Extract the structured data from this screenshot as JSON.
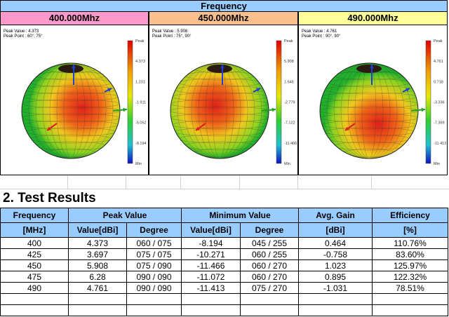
{
  "header": {
    "title": "Frequency"
  },
  "panels": [
    {
      "label": "400.000Mhz",
      "peak_value": "Peak Value :  4.373",
      "peak_point": "Peak Point :  60°, 75°",
      "scale": [
        "Peak",
        "4.373",
        "1.231",
        "-1.911",
        "-5.052",
        "-8.194",
        "Min"
      ]
    },
    {
      "label": "450.000Mhz",
      "peak_value": "Peak Value :  5.908",
      "peak_point": "Peak Point :  75°, 90°",
      "scale": [
        "Peak",
        "5.908",
        "1.545",
        "-2.779",
        "-7.122",
        "-11.466",
        "Min"
      ]
    },
    {
      "label": "490.000Mhz",
      "peak_value": "Peak Value :  4.761",
      "peak_point": "Peak Point :  90°, 90°",
      "scale": [
        "Peak",
        "4.761",
        "0.718",
        "-3.336",
        "-7.369",
        "-11.413",
        "Min"
      ]
    }
  ],
  "section": {
    "title": "2. Test Results"
  },
  "table": {
    "header_top": [
      "Frequency",
      "Peak Value",
      "Minimum Value",
      "Avg. Gain",
      "Efficiency"
    ],
    "header_sub": [
      "[MHz]",
      "Value[dBi]",
      "Degree",
      "Value[dBi]",
      "Degree",
      "[dBi]",
      "[%]"
    ],
    "rows": [
      [
        "400",
        "4.373",
        "060 / 075",
        "-8.194",
        "045 / 255",
        "0.464",
        "110.76%"
      ],
      [
        "425",
        "3.697",
        "075 / 075",
        "-10.271",
        "060 / 255",
        "-0.758",
        "83.60%"
      ],
      [
        "450",
        "5.908",
        "075 / 090",
        "-11.466",
        "060 / 270",
        "1.023",
        "125.97%"
      ],
      [
        "475",
        "6.28",
        "090 / 090",
        "-11.072",
        "060 / 270",
        "0.895",
        "122.32%"
      ],
      [
        "490",
        "4.761",
        "090 / 090",
        "-11.413",
        "075 / 270",
        "-1.031",
        "78.51%"
      ]
    ]
  }
}
